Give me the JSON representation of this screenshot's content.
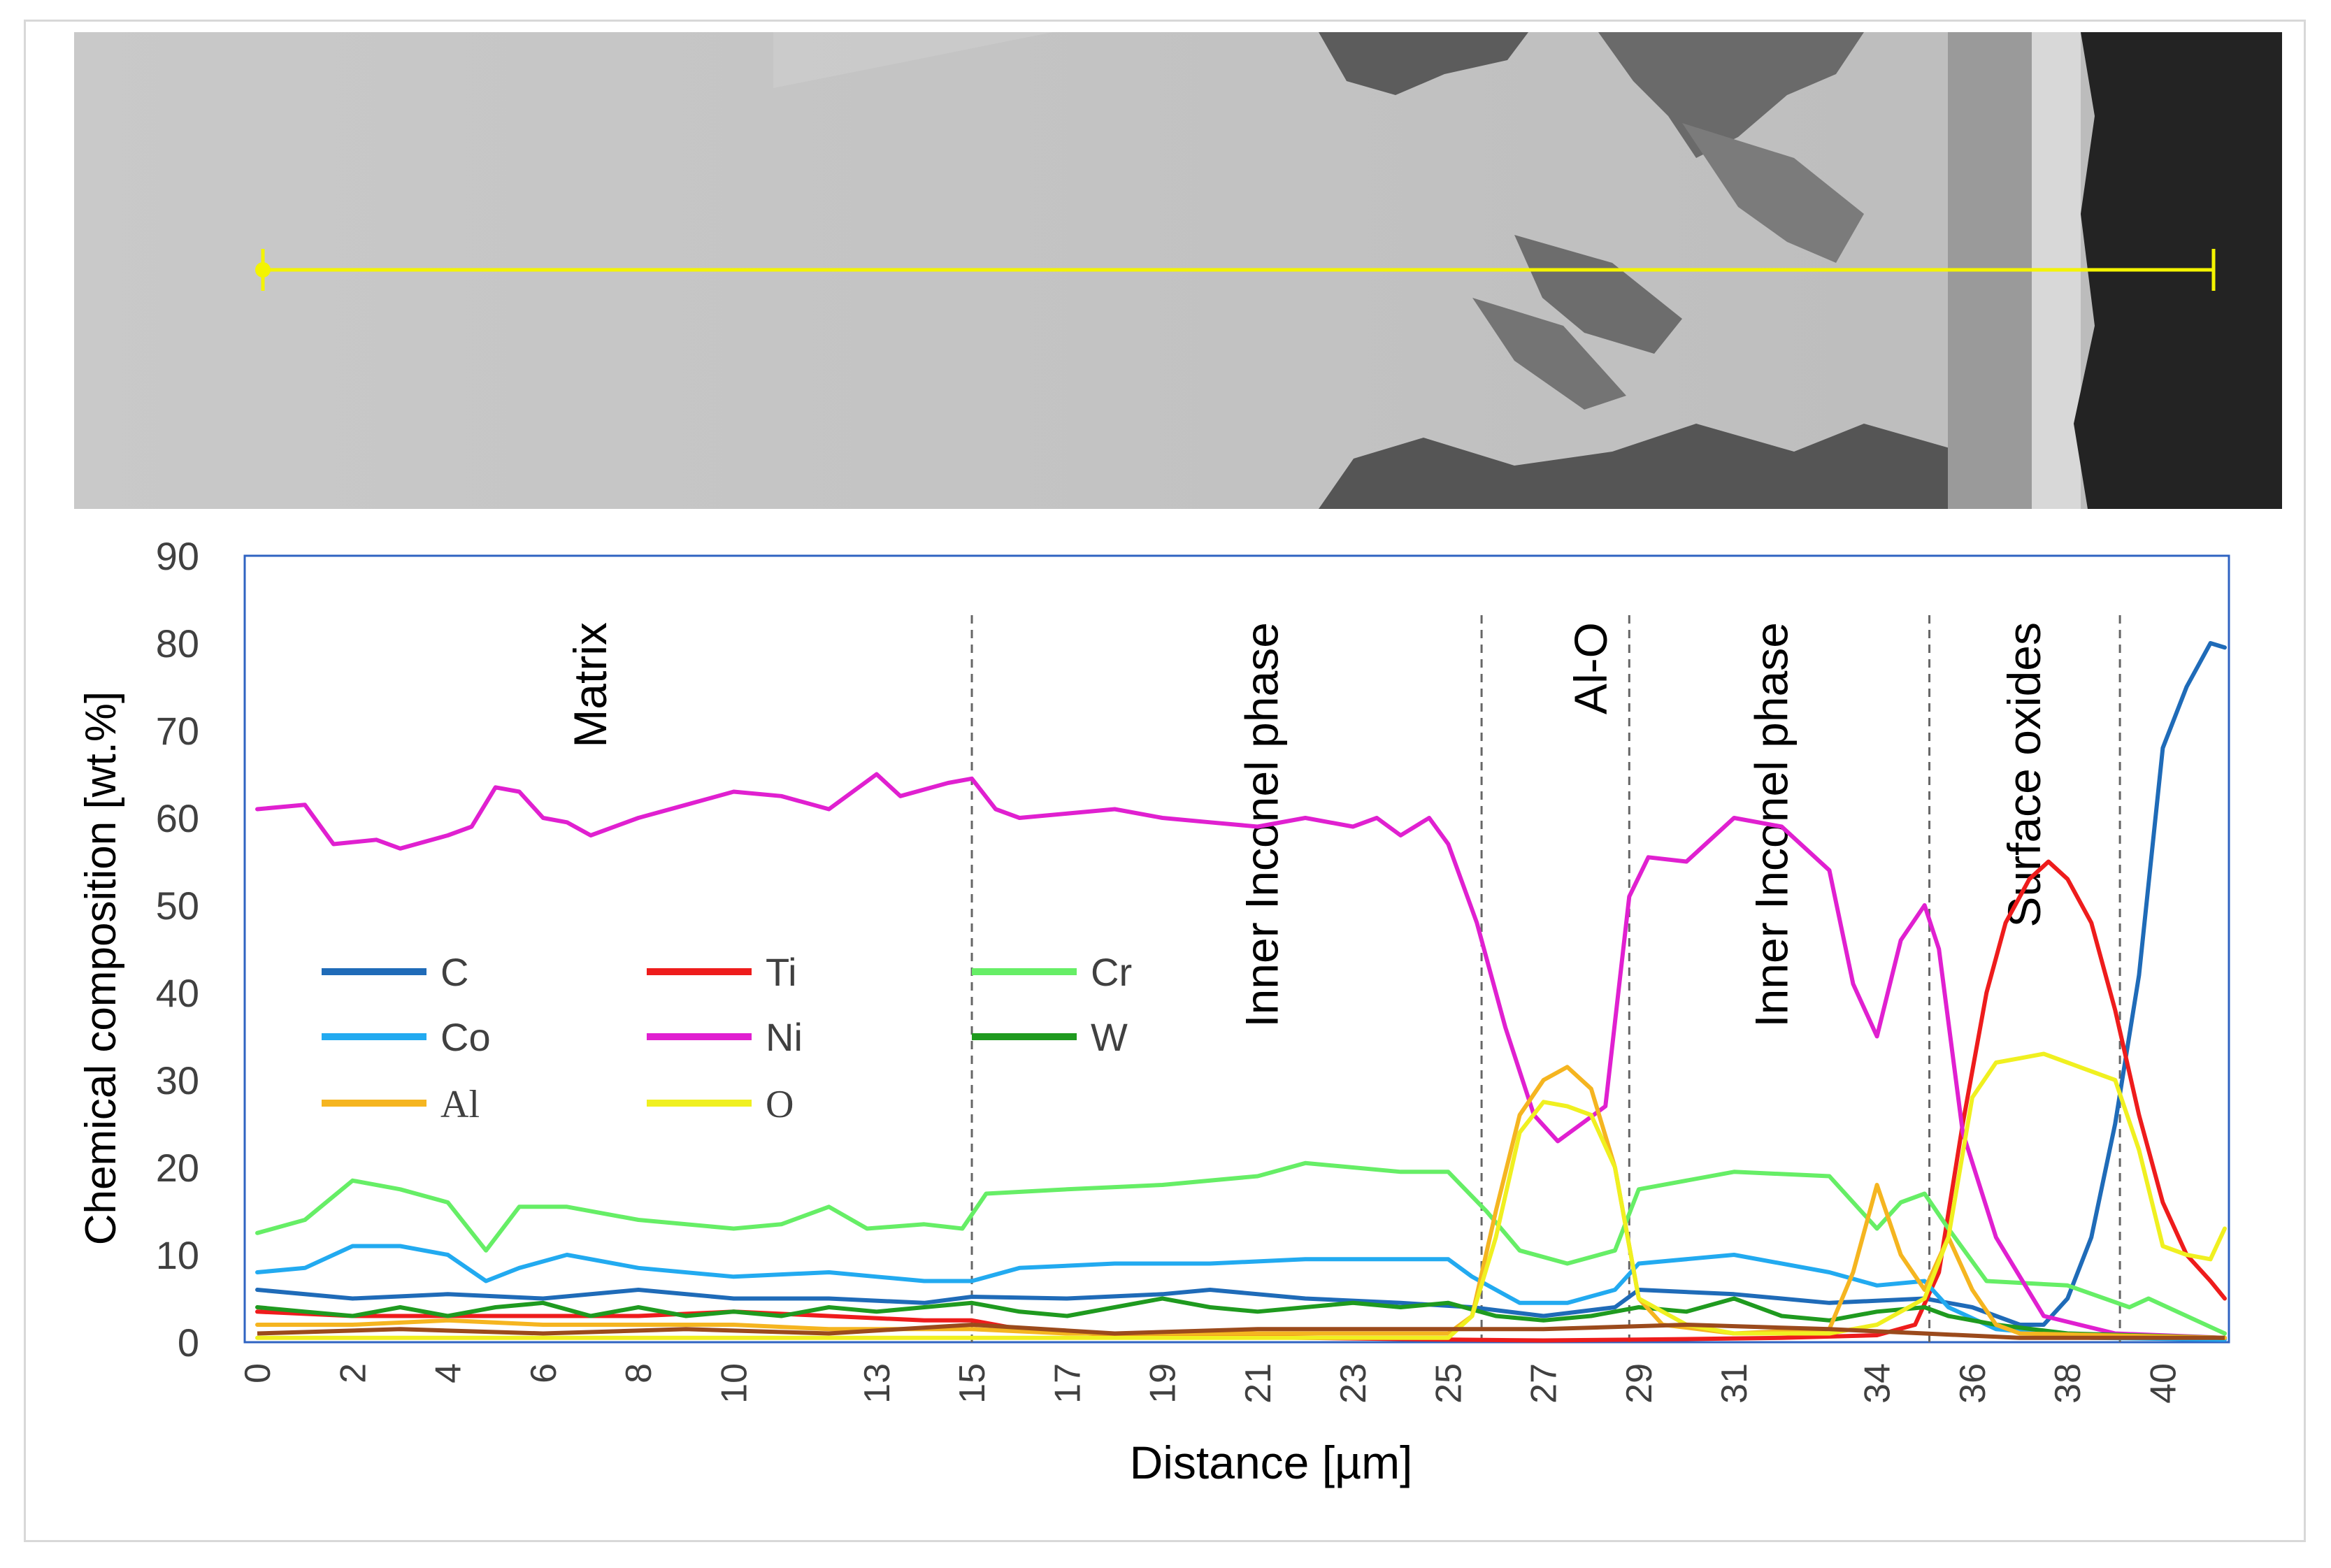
{
  "chart_data": {
    "type": "line",
    "title": "",
    "xlabel": "Distance [µm]",
    "ylabel": "Chemical composition [wt.%]",
    "xlim": [
      0,
      41.3
    ],
    "ylim": [
      0,
      90
    ],
    "yticks": [
      0,
      10,
      20,
      30,
      40,
      50,
      60,
      70,
      80,
      90
    ],
    "xtick_values": [
      0,
      2,
      4,
      6,
      8,
      10,
      13,
      15,
      17,
      19,
      21,
      23,
      25,
      27,
      29,
      31,
      34,
      36,
      38,
      40
    ],
    "xtick_labels": [
      "0",
      "2",
      "4",
      "6",
      "8",
      "10",
      "13",
      "15",
      "17",
      "19",
      "21",
      "23",
      "25",
      "27",
      "29",
      "31",
      "34",
      "36",
      "38",
      "40"
    ],
    "region_boundaries": [
      15,
      25.7,
      28.8,
      35.1,
      39.1
    ],
    "region_labels": [
      {
        "text": "Matrix",
        "x": 7
      },
      {
        "text": "Inner Inconel phase",
        "x": 21.1
      },
      {
        "text": "Al-O",
        "x": 28
      },
      {
        "text": "Inner Inconel phase",
        "x": 31.8
      },
      {
        "text": "Surface oxides",
        "x": 37.1
      }
    ],
    "legend_position": "center-left",
    "series": [
      {
        "name": "C",
        "color": "#1f6bb8",
        "points": [
          [
            0,
            6
          ],
          [
            2,
            5
          ],
          [
            4,
            5.5
          ],
          [
            6,
            5
          ],
          [
            8,
            6
          ],
          [
            10,
            5
          ],
          [
            12,
            5
          ],
          [
            14,
            4.5
          ],
          [
            15,
            5.2
          ],
          [
            17,
            5
          ],
          [
            19,
            5.5
          ],
          [
            20,
            6
          ],
          [
            22,
            5
          ],
          [
            24,
            4.5
          ],
          [
            25.5,
            4
          ],
          [
            27,
            3
          ],
          [
            28.5,
            4
          ],
          [
            29,
            6
          ],
          [
            31,
            5.5
          ],
          [
            33,
            4.5
          ],
          [
            35,
            5
          ],
          [
            36,
            4
          ],
          [
            37,
            2
          ],
          [
            37.5,
            2
          ],
          [
            38,
            5
          ],
          [
            38.5,
            12
          ],
          [
            39,
            25
          ],
          [
            39.5,
            42
          ],
          [
            40,
            68
          ],
          [
            40.5,
            75
          ],
          [
            41,
            80
          ],
          [
            41.3,
            79.5
          ]
        ]
      },
      {
        "name": "Ti",
        "color": "#ee1c1c",
        "points": [
          [
            0,
            3.5
          ],
          [
            2,
            3
          ],
          [
            4,
            3
          ],
          [
            6,
            3
          ],
          [
            8,
            3
          ],
          [
            10,
            3.5
          ],
          [
            12,
            3
          ],
          [
            14,
            2.5
          ],
          [
            15,
            2.5
          ],
          [
            16,
            1.5
          ],
          [
            18,
            0.8
          ],
          [
            22,
            0.5
          ],
          [
            25,
            0.3
          ],
          [
            27,
            0.2
          ],
          [
            29,
            0.3
          ],
          [
            32,
            0.5
          ],
          [
            34,
            0.8
          ],
          [
            34.8,
            2
          ],
          [
            35.3,
            8
          ],
          [
            35.8,
            25
          ],
          [
            36.3,
            40
          ],
          [
            36.7,
            48
          ],
          [
            37.2,
            53
          ],
          [
            37.6,
            55
          ],
          [
            38,
            53
          ],
          [
            38.5,
            48
          ],
          [
            39,
            38
          ],
          [
            39.5,
            26
          ],
          [
            40,
            16
          ],
          [
            40.5,
            10
          ],
          [
            41,
            7
          ],
          [
            41.3,
            5
          ]
        ]
      },
      {
        "name": "Cr",
        "color": "#66ee66",
        "points": [
          [
            0,
            12.5
          ],
          [
            1,
            14
          ],
          [
            2,
            18.5
          ],
          [
            3,
            17.5
          ],
          [
            4,
            16
          ],
          [
            4.8,
            10.5
          ],
          [
            5.5,
            15.5
          ],
          [
            6.5,
            15.5
          ],
          [
            8,
            14
          ],
          [
            10,
            13
          ],
          [
            11,
            13.5
          ],
          [
            12,
            15.5
          ],
          [
            12.8,
            13
          ],
          [
            14,
            13.5
          ],
          [
            14.8,
            13
          ],
          [
            15.3,
            17
          ],
          [
            17,
            17.5
          ],
          [
            19,
            18
          ],
          [
            21,
            19
          ],
          [
            22,
            20.5
          ],
          [
            23,
            20
          ],
          [
            24,
            19.5
          ],
          [
            25,
            19.5
          ],
          [
            25.8,
            15
          ],
          [
            26.5,
            10.5
          ],
          [
            27.5,
            9
          ],
          [
            28.5,
            10.5
          ],
          [
            29,
            17.5
          ],
          [
            31,
            19.5
          ],
          [
            33,
            19
          ],
          [
            34,
            13
          ],
          [
            34.5,
            16
          ],
          [
            35,
            17
          ],
          [
            35.5,
            13
          ],
          [
            36.3,
            7
          ],
          [
            38,
            6.5
          ],
          [
            39.3,
            4
          ],
          [
            39.7,
            5
          ],
          [
            40.5,
            3
          ],
          [
            41.3,
            1
          ]
        ]
      },
      {
        "name": "Co",
        "color": "#22aaf0",
        "points": [
          [
            0,
            8
          ],
          [
            1,
            8.5
          ],
          [
            2,
            11
          ],
          [
            3,
            11
          ],
          [
            4,
            10
          ],
          [
            4.8,
            7
          ],
          [
            5.5,
            8.5
          ],
          [
            6.5,
            10
          ],
          [
            8,
            8.5
          ],
          [
            10,
            7.5
          ],
          [
            12,
            8
          ],
          [
            13,
            7.5
          ],
          [
            14,
            7
          ],
          [
            15,
            7
          ],
          [
            16,
            8.5
          ],
          [
            18,
            9
          ],
          [
            20,
            9
          ],
          [
            22,
            9.5
          ],
          [
            24,
            9.5
          ],
          [
            25,
            9.5
          ],
          [
            25.5,
            7.5
          ],
          [
            26.5,
            4.5
          ],
          [
            27.5,
            4.5
          ],
          [
            28.5,
            6
          ],
          [
            29,
            9
          ],
          [
            31,
            10
          ],
          [
            33,
            8
          ],
          [
            34,
            6.5
          ],
          [
            35,
            7
          ],
          [
            35.5,
            4
          ],
          [
            36.5,
            1.5
          ],
          [
            37.5,
            1
          ],
          [
            38.5,
            0.5
          ],
          [
            41.3,
            0.3
          ]
        ]
      },
      {
        "name": "Ni",
        "color": "#e020d0",
        "points": [
          [
            0,
            61
          ],
          [
            1,
            61.5
          ],
          [
            1.6,
            57
          ],
          [
            2.5,
            57.5
          ],
          [
            3,
            56.5
          ],
          [
            4,
            58
          ],
          [
            4.5,
            59
          ],
          [
            5,
            63.5
          ],
          [
            5.5,
            63
          ],
          [
            6,
            60
          ],
          [
            6.5,
            59.5
          ],
          [
            7,
            58
          ],
          [
            8,
            60
          ],
          [
            9,
            61.5
          ],
          [
            10,
            63
          ],
          [
            11,
            62.5
          ],
          [
            12,
            61
          ],
          [
            13,
            65
          ],
          [
            13.5,
            62.5
          ],
          [
            14.5,
            64
          ],
          [
            15,
            64.5
          ],
          [
            15.5,
            61
          ],
          [
            16,
            60
          ],
          [
            17,
            60.5
          ],
          [
            18,
            61
          ],
          [
            19,
            60
          ],
          [
            20,
            59.5
          ],
          [
            21,
            59
          ],
          [
            22,
            60
          ],
          [
            23,
            59
          ],
          [
            23.5,
            60
          ],
          [
            24,
            58
          ],
          [
            24.6,
            60
          ],
          [
            25,
            57
          ],
          [
            25.6,
            48
          ],
          [
            26.2,
            36
          ],
          [
            26.8,
            26
          ],
          [
            27.3,
            23
          ],
          [
            27.8,
            25
          ],
          [
            28.3,
            27
          ],
          [
            28.8,
            51
          ],
          [
            29.2,
            55.5
          ],
          [
            30,
            55
          ],
          [
            31,
            60
          ],
          [
            32,
            59
          ],
          [
            33,
            54
          ],
          [
            33.5,
            41
          ],
          [
            34,
            35
          ],
          [
            34.5,
            46
          ],
          [
            35,
            50
          ],
          [
            35.3,
            45
          ],
          [
            35.8,
            24
          ],
          [
            36.5,
            12
          ],
          [
            37.5,
            3
          ],
          [
            39,
            1
          ],
          [
            41.3,
            0.5
          ]
        ]
      },
      {
        "name": "W",
        "color": "#1f9a1f",
        "points": [
          [
            0,
            4
          ],
          [
            1,
            3.5
          ],
          [
            2,
            3
          ],
          [
            3,
            4
          ],
          [
            4,
            3
          ],
          [
            5,
            4
          ],
          [
            6,
            4.5
          ],
          [
            7,
            3
          ],
          [
            8,
            4
          ],
          [
            9,
            3
          ],
          [
            10,
            3.5
          ],
          [
            11,
            3
          ],
          [
            12,
            4
          ],
          [
            13,
            3.5
          ],
          [
            14,
            4
          ],
          [
            15,
            4.5
          ],
          [
            16,
            3.5
          ],
          [
            17,
            3
          ],
          [
            18,
            4
          ],
          [
            19,
            5
          ],
          [
            20,
            4
          ],
          [
            21,
            3.5
          ],
          [
            22,
            4
          ],
          [
            23,
            4.5
          ],
          [
            24,
            4
          ],
          [
            25,
            4.5
          ],
          [
            26,
            3
          ],
          [
            27,
            2.5
          ],
          [
            28,
            3
          ],
          [
            29,
            4
          ],
          [
            30,
            3.5
          ],
          [
            31,
            5
          ],
          [
            32,
            3
          ],
          [
            33,
            2.5
          ],
          [
            34,
            3.5
          ],
          [
            35,
            4
          ],
          [
            35.5,
            3
          ],
          [
            36.5,
            2
          ],
          [
            38,
            1
          ],
          [
            41.3,
            0.5
          ]
        ]
      },
      {
        "name": "Al",
        "color": "#f5b520",
        "points": [
          [
            0,
            2
          ],
          [
            2,
            2
          ],
          [
            4,
            2.5
          ],
          [
            6,
            2
          ],
          [
            8,
            2
          ],
          [
            10,
            2
          ],
          [
            12,
            1.5
          ],
          [
            14,
            1.5
          ],
          [
            15,
            1.5
          ],
          [
            17,
            1
          ],
          [
            20,
            1
          ],
          [
            23,
            1
          ],
          [
            25,
            1
          ],
          [
            25.5,
            3
          ],
          [
            26,
            15
          ],
          [
            26.5,
            26
          ],
          [
            27,
            30
          ],
          [
            27.5,
            31.5
          ],
          [
            28,
            29
          ],
          [
            28.5,
            20
          ],
          [
            29,
            5
          ],
          [
            29.5,
            2
          ],
          [
            31,
            1
          ],
          [
            33,
            1.5
          ],
          [
            33.5,
            8
          ],
          [
            34,
            18
          ],
          [
            34.5,
            10
          ],
          [
            35,
            6
          ],
          [
            35.5,
            12
          ],
          [
            36,
            6
          ],
          [
            36.5,
            2
          ],
          [
            37,
            1
          ],
          [
            41.3,
            0.5
          ]
        ]
      },
      {
        "name": "O",
        "color": "#f0f020",
        "points": [
          [
            0,
            0.5
          ],
          [
            5,
            0.5
          ],
          [
            10,
            0.5
          ],
          [
            15,
            0.5
          ],
          [
            20,
            0.5
          ],
          [
            25,
            0.5
          ],
          [
            25.5,
            3
          ],
          [
            26,
            12
          ],
          [
            26.5,
            24
          ],
          [
            27,
            27.5
          ],
          [
            27.5,
            27
          ],
          [
            28,
            26
          ],
          [
            28.5,
            20
          ],
          [
            29,
            5
          ],
          [
            30,
            2
          ],
          [
            31,
            1
          ],
          [
            33,
            1
          ],
          [
            34,
            2
          ],
          [
            35,
            5
          ],
          [
            35.5,
            12
          ],
          [
            36,
            28
          ],
          [
            36.5,
            32
          ],
          [
            37,
            32.5
          ],
          [
            37.5,
            33
          ],
          [
            38,
            32
          ],
          [
            38.5,
            31
          ],
          [
            39,
            30
          ],
          [
            39.5,
            22
          ],
          [
            40,
            11
          ],
          [
            40.5,
            10
          ],
          [
            41,
            9.5
          ],
          [
            41.3,
            13
          ]
        ]
      }
    ]
  }
}
